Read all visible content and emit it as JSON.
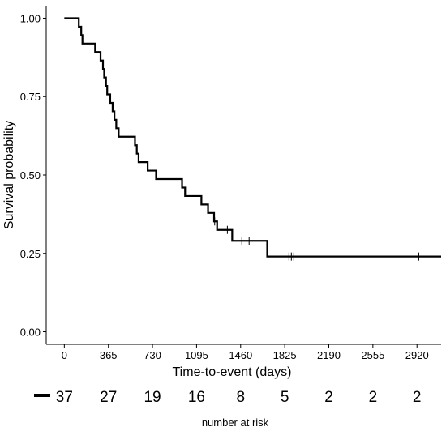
{
  "chart_data": {
    "type": "line",
    "subtype": "kaplan-meier step curve",
    "xlabel": "Time-to-event (days)",
    "ylabel": "Survival probability",
    "xlim": [
      -150,
      3120
    ],
    "ylim": [
      -0.04,
      1.04
    ],
    "x_ticks": [
      0,
      365,
      730,
      1095,
      1460,
      1825,
      2190,
      2555,
      2920
    ],
    "y_ticks": [
      0.0,
      0.25,
      0.5,
      0.75,
      1.0
    ],
    "y_tick_labels": [
      "0.00",
      "0.25",
      "0.50",
      "0.75",
      "1.00"
    ],
    "grid": false,
    "line_color": "#000000",
    "series": [
      {
        "steps": [
          [
            0,
            1.0
          ],
          [
            120,
            0.973
          ],
          [
            140,
            0.946
          ],
          [
            150,
            0.919
          ],
          [
            255,
            0.892
          ],
          [
            300,
            0.865
          ],
          [
            320,
            0.838
          ],
          [
            330,
            0.811
          ],
          [
            345,
            0.784
          ],
          [
            355,
            0.757
          ],
          [
            380,
            0.73
          ],
          [
            400,
            0.703
          ],
          [
            415,
            0.676
          ],
          [
            430,
            0.649
          ],
          [
            450,
            0.622
          ],
          [
            585,
            0.595
          ],
          [
            600,
            0.568
          ],
          [
            615,
            0.541
          ],
          [
            690,
            0.514
          ],
          [
            760,
            0.487
          ],
          [
            975,
            0.46
          ],
          [
            1000,
            0.433
          ],
          [
            1135,
            0.406
          ],
          [
            1190,
            0.379
          ],
          [
            1240,
            0.352
          ],
          [
            1265,
            0.325
          ],
          [
            1390,
            0.29
          ],
          [
            1680,
            0.24
          ],
          [
            3120,
            0.24
          ]
        ],
        "censored": [
          [
            1245,
            0.352
          ],
          [
            1350,
            0.325
          ],
          [
            1470,
            0.29
          ],
          [
            1530,
            0.29
          ],
          [
            1860,
            0.24
          ],
          [
            1880,
            0.24
          ],
          [
            1900,
            0.24
          ],
          [
            2935,
            0.24
          ]
        ]
      }
    ],
    "risk_table": {
      "title": "number at risk",
      "times": [
        0,
        365,
        730,
        1095,
        1460,
        1825,
        2190,
        2555,
        2920
      ],
      "counts": [
        "37",
        "27",
        "19",
        "16",
        "8",
        "5",
        "2",
        "2",
        "2"
      ]
    }
  }
}
